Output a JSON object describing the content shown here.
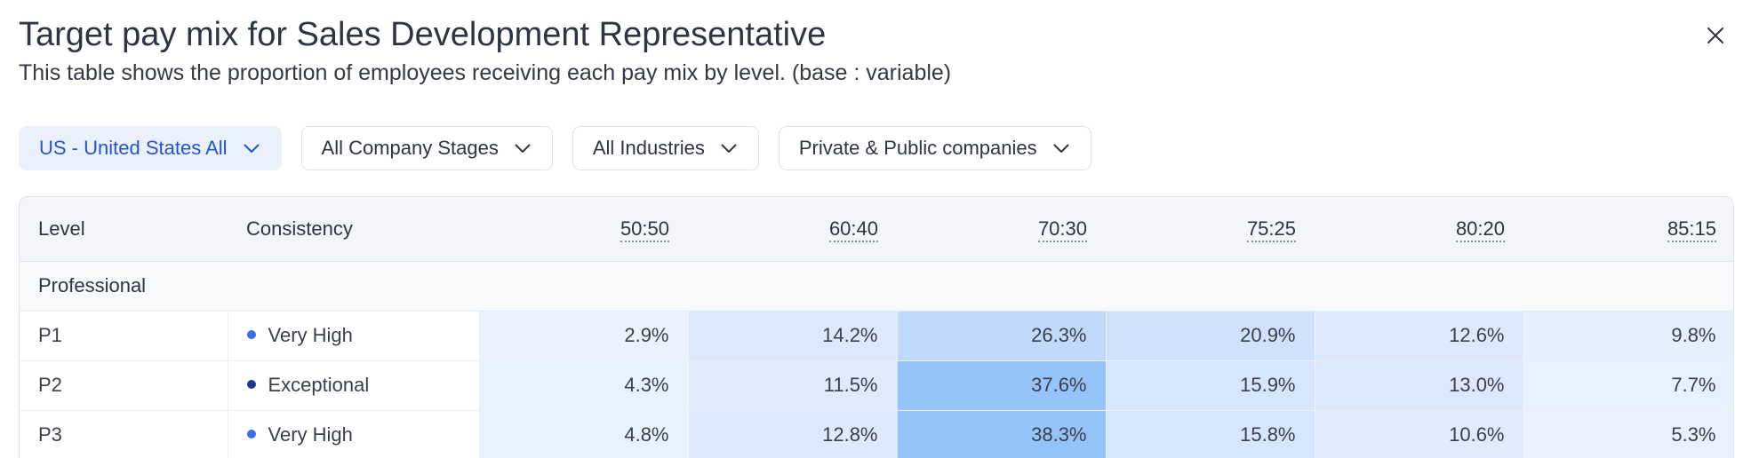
{
  "header": {
    "title": "Target pay mix for Sales Development Representative",
    "subtitle": "This table shows the proportion of employees receiving each pay mix by level. (base : variable)"
  },
  "icons": {
    "close": "close-icon",
    "dropdown": "chevron-down-icon"
  },
  "filters": [
    {
      "label": "US - United States All",
      "active": true
    },
    {
      "label": "All Company Stages",
      "active": false
    },
    {
      "label": "All Industries",
      "active": false
    },
    {
      "label": "Private & Public companies",
      "active": false
    }
  ],
  "table": {
    "columns": {
      "level": "Level",
      "consistency": "Consistency",
      "mixes": [
        "50:50",
        "60:40",
        "70:30",
        "75:25",
        "80:20",
        "85:15"
      ]
    },
    "group": "Professional",
    "rows": [
      {
        "level": "P1",
        "consistency": "Very High",
        "dot_color": "#3b6fe0",
        "values": [
          "2.9%",
          "14.2%",
          "26.3%",
          "20.9%",
          "12.6%",
          "9.8%"
        ],
        "shades": [
          "#eaf2fe",
          "#dbe8fd",
          "#c1d9fb",
          "#cfe1fc",
          "#dde9fd",
          "#e6effe"
        ]
      },
      {
        "level": "P2",
        "consistency": "Exceptional",
        "dot_color": "#1f3a8a",
        "values": [
          "4.3%",
          "11.5%",
          "37.6%",
          "15.9%",
          "13.0%",
          "7.7%"
        ],
        "shades": [
          "#e8f1fe",
          "#dfeafd",
          "#96c4fa",
          "#d6e6fd",
          "#dce8fd",
          "#e7f0fe"
        ]
      },
      {
        "level": "P3",
        "consistency": "Very High",
        "dot_color": "#3b6fe0",
        "values": [
          "4.8%",
          "12.8%",
          "38.3%",
          "15.8%",
          "10.6%",
          "5.3%"
        ],
        "shades": [
          "#e8f1fe",
          "#dde9fd",
          "#94c3fa",
          "#d6e6fd",
          "#e0ebfd",
          "#e9f1fe"
        ]
      }
    ]
  }
}
